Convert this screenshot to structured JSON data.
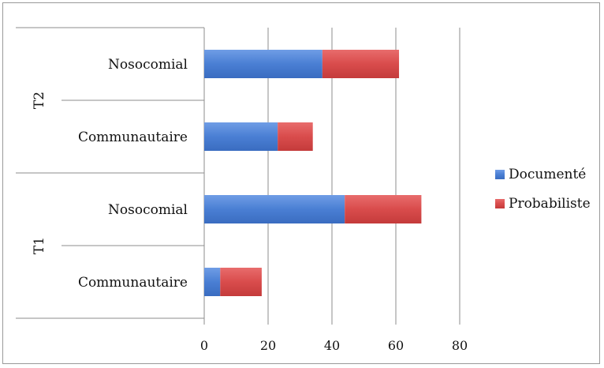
{
  "chart_data": {
    "type": "bar",
    "orientation": "horizontal",
    "stacked": true,
    "groups": [
      {
        "label": "T2",
        "categories": [
          "Nosocomial",
          "Communautaire"
        ]
      },
      {
        "label": "T1",
        "categories": [
          "Nosocomial",
          "Communautaire"
        ]
      }
    ],
    "categories": [
      "T2 Nosocomial",
      "T2 Communautaire",
      "T1 Nosocomial",
      "T1 Communautaire"
    ],
    "category_labels": [
      "Nosocomial",
      "Communautaire",
      "Nosocomial",
      "Communautaire"
    ],
    "series": [
      {
        "name": "Documenté",
        "color": "#4a7fd4",
        "values": [
          37,
          23,
          44,
          5
        ]
      },
      {
        "name": "Probabiliste",
        "color": "#d94c4c",
        "values": [
          24,
          11,
          24,
          13
        ]
      }
    ],
    "xlim": [
      0,
      80
    ],
    "xticks": [
      0,
      20,
      40,
      60,
      80
    ],
    "grid": "vertical",
    "legend_position": "right"
  }
}
